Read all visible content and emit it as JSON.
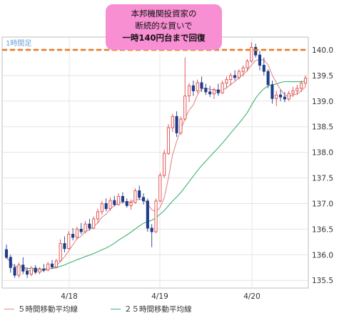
{
  "timeframe_label": "1時間足",
  "callout": {
    "line1": "本邦機関投資家の",
    "line2": "断続的な買いで",
    "line3": "一時140円台まで回復"
  },
  "colors": {
    "up": "#e04848",
    "down": "#1f3d8a",
    "ma5": "#e38a8a",
    "ma25": "#3cb46e",
    "resistance": "#ee7a22",
    "callout_bg": "#f78fd2",
    "timeframe_label": "#6aa0d8"
  },
  "chart_data": {
    "type": "candlestick",
    "xlabel": "",
    "ylabel": "",
    "x_ticks": [
      "4/18",
      "4/19",
      "4/20"
    ],
    "ylim": [
      135.35,
      140.25
    ],
    "y_ticks": [
      135.5,
      136.0,
      136.5,
      137.0,
      137.5,
      138.0,
      138.5,
      139.0,
      139.5,
      140.0
    ],
    "y_tick_labels": [
      "135.5",
      "136.0",
      "136.5",
      "137.0",
      "137.5",
      "138.0",
      "138.5",
      "139.0",
      "139.5",
      "140.0"
    ],
    "grid": true,
    "reference_line": {
      "value": 140.0,
      "style": "dashed"
    },
    "legend": [
      {
        "name": "５時間移動平均線",
        "color": "#e38a8a"
      },
      {
        "name": "２５時間移動平均線",
        "color": "#3cb46e"
      }
    ],
    "ohlc": [
      [
        136.1,
        136.2,
        135.92,
        135.95
      ],
      [
        135.95,
        136.0,
        135.65,
        135.75
      ],
      [
        135.75,
        135.82,
        135.55,
        135.6
      ],
      [
        135.6,
        135.85,
        135.55,
        135.8
      ],
      [
        135.8,
        135.95,
        135.62,
        135.68
      ],
      [
        135.68,
        135.75,
        135.55,
        135.62
      ],
      [
        135.62,
        135.78,
        135.58,
        135.74
      ],
      [
        135.74,
        135.8,
        135.62,
        135.66
      ],
      [
        135.66,
        135.76,
        135.62,
        135.72
      ],
      [
        135.72,
        135.82,
        135.66,
        135.7
      ],
      [
        135.7,
        135.86,
        135.68,
        135.82
      ],
      [
        135.82,
        135.9,
        135.72,
        135.76
      ],
      [
        135.76,
        135.92,
        135.74,
        135.88
      ],
      [
        135.88,
        136.3,
        135.86,
        136.22
      ],
      [
        136.22,
        136.36,
        136.05,
        136.12
      ],
      [
        136.12,
        136.46,
        136.1,
        136.4
      ],
      [
        136.4,
        136.52,
        136.28,
        136.34
      ],
      [
        136.34,
        136.55,
        136.3,
        136.5
      ],
      [
        136.5,
        136.62,
        136.4,
        136.45
      ],
      [
        136.45,
        136.66,
        136.42,
        136.6
      ],
      [
        136.6,
        136.7,
        136.48,
        136.52
      ],
      [
        136.52,
        136.75,
        136.5,
        136.7
      ],
      [
        136.7,
        136.9,
        136.62,
        136.84
      ],
      [
        136.84,
        137.05,
        136.78,
        137.0
      ],
      [
        137.0,
        137.1,
        136.85,
        136.9
      ],
      [
        136.9,
        137.12,
        136.86,
        137.06
      ],
      [
        137.06,
        137.15,
        136.95,
        136.98
      ],
      [
        136.98,
        137.2,
        136.96,
        137.14
      ],
      [
        137.14,
        137.22,
        137.0,
        137.04
      ],
      [
        137.04,
        137.1,
        136.92,
        136.96
      ],
      [
        136.96,
        137.08,
        136.88,
        137.02
      ],
      [
        137.02,
        137.3,
        137.0,
        137.25
      ],
      [
        137.25,
        137.35,
        137.08,
        137.12
      ],
      [
        137.12,
        137.2,
        136.98,
        137.05
      ],
      [
        137.05,
        137.1,
        136.45,
        136.52
      ],
      [
        136.52,
        136.6,
        136.15,
        136.45
      ],
      [
        136.45,
        137.1,
        136.42,
        137.05
      ],
      [
        137.05,
        137.6,
        137.02,
        137.55
      ],
      [
        137.55,
        138.05,
        137.5,
        137.98
      ],
      [
        137.98,
        138.55,
        137.95,
        138.48
      ],
      [
        138.48,
        138.75,
        138.4,
        138.7
      ],
      [
        138.7,
        138.8,
        138.3,
        138.38
      ],
      [
        138.38,
        138.7,
        138.34,
        138.65
      ],
      [
        138.65,
        139.85,
        138.62,
        139.1
      ],
      [
        139.1,
        139.35,
        138.98,
        139.3
      ],
      [
        139.3,
        139.4,
        139.1,
        139.2
      ],
      [
        139.2,
        139.42,
        139.15,
        139.36
      ],
      [
        139.36,
        139.48,
        139.18,
        139.25
      ],
      [
        139.25,
        139.34,
        139.12,
        139.18
      ],
      [
        139.18,
        139.3,
        139.08,
        139.14
      ],
      [
        139.14,
        139.26,
        139.04,
        139.22
      ],
      [
        139.22,
        139.34,
        139.1,
        139.16
      ],
      [
        139.16,
        139.4,
        139.14,
        139.35
      ],
      [
        139.35,
        139.48,
        139.25,
        139.42
      ],
      [
        139.42,
        139.55,
        139.3,
        139.5
      ],
      [
        139.5,
        139.6,
        139.4,
        139.46
      ],
      [
        139.46,
        139.62,
        139.42,
        139.58
      ],
      [
        139.58,
        139.7,
        139.48,
        139.65
      ],
      [
        139.65,
        139.82,
        139.58,
        139.78
      ],
      [
        139.78,
        140.15,
        139.75,
        140.05
      ],
      [
        140.05,
        140.12,
        139.85,
        139.9
      ],
      [
        139.9,
        139.98,
        139.6,
        139.7
      ],
      [
        139.7,
        139.85,
        139.5,
        139.58
      ],
      [
        139.58,
        139.62,
        139.25,
        139.32
      ],
      [
        139.32,
        139.4,
        138.95,
        139.05
      ],
      [
        139.05,
        139.2,
        138.9,
        139.12
      ],
      [
        139.12,
        139.22,
        139.0,
        139.08
      ],
      [
        139.08,
        139.18,
        138.98,
        139.04
      ],
      [
        139.04,
        139.2,
        139.0,
        139.15
      ],
      [
        139.15,
        139.28,
        139.08,
        139.2
      ],
      [
        139.2,
        139.32,
        139.12,
        139.25
      ],
      [
        139.25,
        139.4,
        139.18,
        139.35
      ],
      [
        139.35,
        139.5,
        139.28,
        139.45
      ]
    ]
  }
}
